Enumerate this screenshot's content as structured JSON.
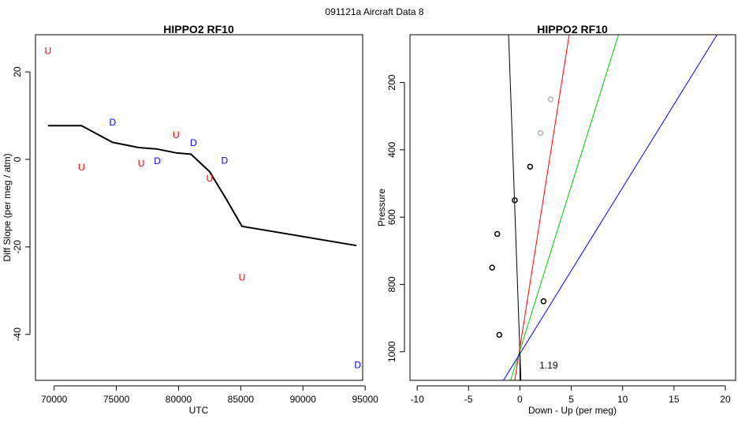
{
  "figure": {
    "suptitle": "091121a   Aircraft Data 8"
  },
  "chart_data": [
    {
      "type": "scatter",
      "title": "HIPPO2 RF10",
      "xlabel": "UTC",
      "ylabel": "Diff Slope (per meg / atm)",
      "xlim": [
        68500,
        94800
      ],
      "ylim": [
        -50.5,
        28.5
      ],
      "xticks": [
        70000,
        75000,
        80000,
        85000,
        90000,
        95000
      ],
      "yticks": [
        20,
        0,
        -20,
        -40
      ],
      "grid": false,
      "line": {
        "color": "#000000",
        "x": [
          69500,
          72200,
          74700,
          76800,
          78200,
          79800,
          81000,
          82500,
          83800,
          85100,
          94300
        ],
        "y": [
          7.7,
          7.7,
          3.9,
          2.7,
          2.4,
          1.5,
          1.2,
          -2.8,
          -8.9,
          -15.3,
          -19.7
        ]
      },
      "series": [
        {
          "color": "#ff0000",
          "points": [
            {
              "x": 69500,
              "y": 24.8,
              "label": "U"
            },
            {
              "x": 72200,
              "y": -1.8,
              "label": "U"
            },
            {
              "x": 77000,
              "y": -0.9,
              "label": "U"
            },
            {
              "x": 79800,
              "y": 5.6,
              "label": "U"
            },
            {
              "x": 82500,
              "y": -4.3,
              "label": "U"
            },
            {
              "x": 85100,
              "y": -27.0,
              "label": "U"
            }
          ]
        },
        {
          "color": "#0000ff",
          "points": [
            {
              "x": 74700,
              "y": 8.5,
              "label": "D"
            },
            {
              "x": 78300,
              "y": -0.4,
              "label": "D"
            },
            {
              "x": 81200,
              "y": 3.8,
              "label": "D"
            },
            {
              "x": 83700,
              "y": -0.3,
              "label": "D"
            },
            {
              "x": 94400,
              "y": -47.0,
              "label": "D"
            }
          ]
        }
      ]
    },
    {
      "type": "scatter",
      "title": "HIPPO2 RF10",
      "xlabel": "Down - Up (per meg)",
      "ylabel": "Pressure",
      "xlim": [
        -10.7,
        21.0
      ],
      "ylim": [
        1085,
        58
      ],
      "y_reversed": true,
      "xticks": [
        -10,
        -5,
        0,
        5,
        10,
        15,
        20
      ],
      "yticks": [
        200,
        400,
        600,
        800,
        1000
      ],
      "grid": false,
      "annotation": {
        "text": "1.19",
        "x": 2.8,
        "y": 1040
      },
      "vertical_line": {
        "x": 0,
        "y_from": 1000,
        "y_to": 1085,
        "color": "#000000"
      },
      "points": [
        {
          "x": 3.0,
          "y": 250,
          "color": "#b3b3b3"
        },
        {
          "x": 2.0,
          "y": 350,
          "color": "#b3b3b3"
        },
        {
          "x": 1.0,
          "y": 450,
          "color": "#000000"
        },
        {
          "x": -0.5,
          "y": 550,
          "color": "#000000"
        },
        {
          "x": -2.2,
          "y": 650,
          "color": "#000000"
        },
        {
          "x": -2.7,
          "y": 750,
          "color": "#000000"
        },
        {
          "x": 2.3,
          "y": 850,
          "color": "#000000"
        },
        {
          "x": -2.0,
          "y": 950,
          "color": "#000000"
        }
      ],
      "fit_lines": [
        {
          "color": "#000000",
          "x1": -1.1,
          "y1": 58,
          "x2": 0.1,
          "y2": 1085
        },
        {
          "color": "#ff0000",
          "x1": 4.8,
          "y1": 58,
          "x2": -0.5,
          "y2": 1085
        },
        {
          "color": "#00cc00",
          "x1": 9.6,
          "y1": 58,
          "x2": -0.9,
          "y2": 1085
        },
        {
          "color": "#0000ff",
          "x1": 19.2,
          "y1": 58,
          "x2": -1.6,
          "y2": 1085
        }
      ]
    }
  ]
}
